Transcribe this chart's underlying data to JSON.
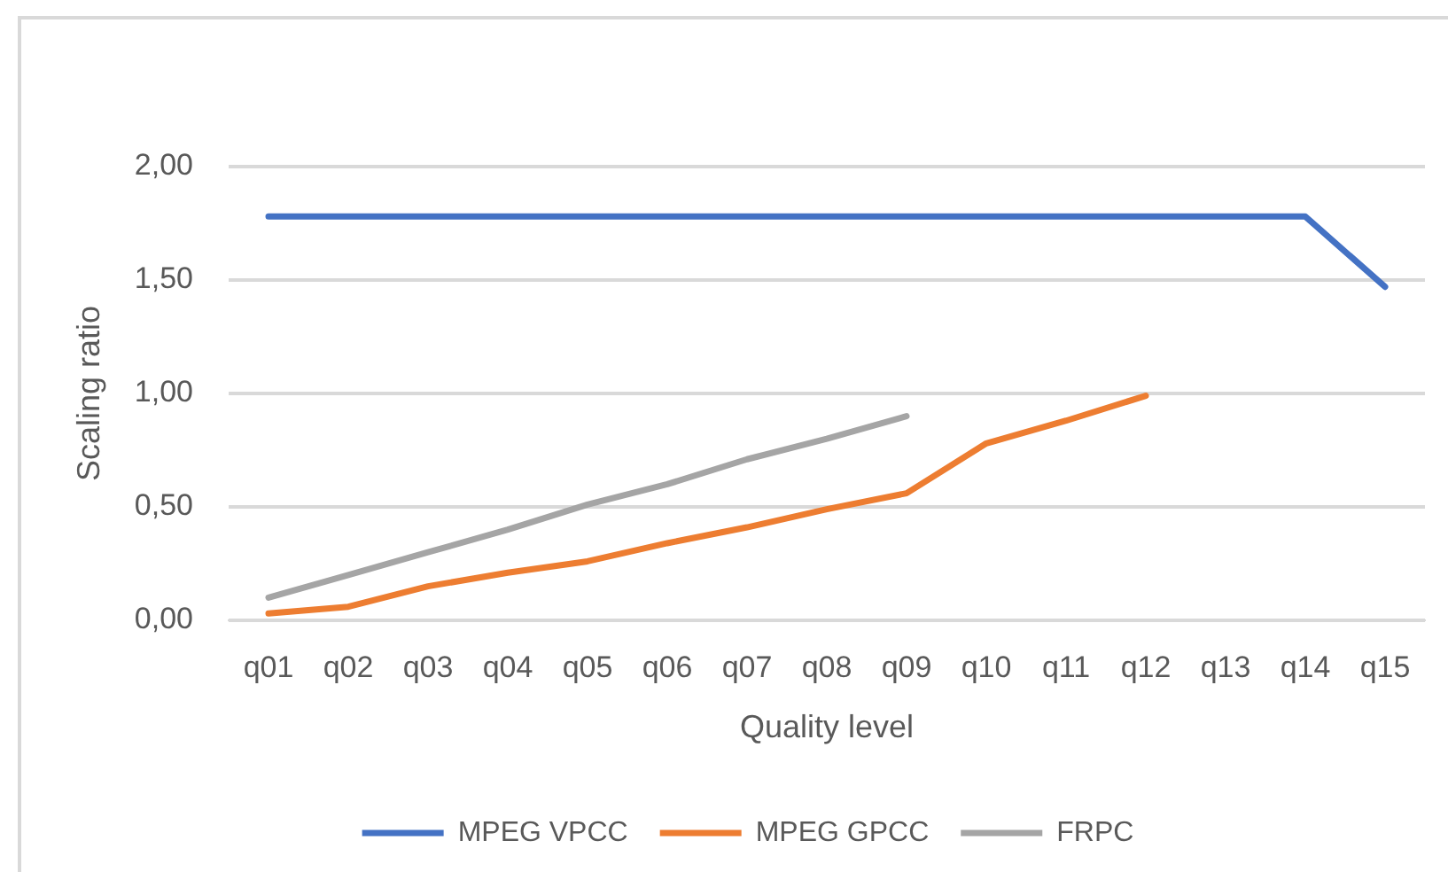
{
  "chart_data": {
    "type": "line",
    "xlabel": "Quality level",
    "ylabel": "Scaling ratio",
    "categories": [
      "q01",
      "q02",
      "q03",
      "q04",
      "q05",
      "q06",
      "q07",
      "q08",
      "q09",
      "q10",
      "q11",
      "q12",
      "q13",
      "q14",
      "q15"
    ],
    "series": [
      {
        "name": "MPEG VPCC",
        "color": "#4472c4",
        "values": [
          1.78,
          1.78,
          1.78,
          1.78,
          1.78,
          1.78,
          1.78,
          1.78,
          1.78,
          1.78,
          1.78,
          1.78,
          1.78,
          1.78,
          1.47
        ]
      },
      {
        "name": "MPEG GPCC",
        "color": "#ed7d31",
        "values": [
          0.03,
          0.06,
          0.15,
          0.21,
          0.26,
          0.34,
          0.41,
          0.49,
          0.56,
          0.78,
          0.88,
          0.99,
          null,
          null,
          null
        ]
      },
      {
        "name": "FRPC",
        "color": "#a5a5a5",
        "values": [
          0.1,
          0.2,
          0.3,
          0.4,
          0.51,
          0.6,
          0.71,
          0.8,
          0.9,
          null,
          null,
          null,
          null,
          null,
          null
        ]
      }
    ],
    "ylim": [
      0,
      2
    ],
    "yticks": [
      {
        "value": 0,
        "label": "0,00"
      },
      {
        "value": 0.5,
        "label": "0,50"
      },
      {
        "value": 1,
        "label": "1,00"
      },
      {
        "value": 1.5,
        "label": "1,50"
      },
      {
        "value": 2,
        "label": "2,00"
      }
    ],
    "grid": "y",
    "legend": "bottom",
    "marker": "none",
    "line_style": "solid"
  }
}
